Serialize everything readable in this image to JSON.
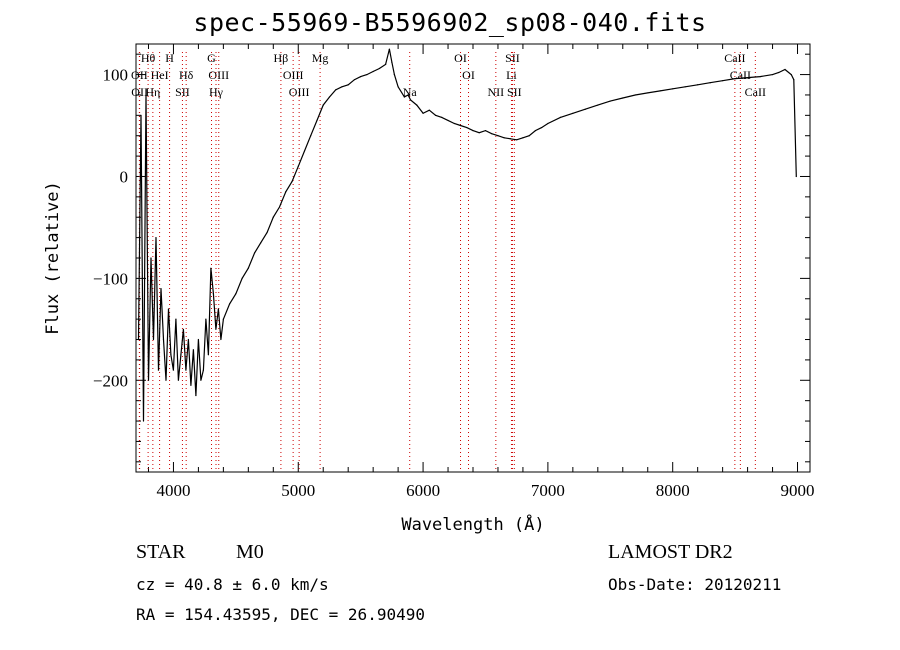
{
  "page": {
    "title": "spec-55969-B5596902_sp08-040.fits",
    "classification": "STAR",
    "subclass": "M0",
    "survey": "LAMOST DR2",
    "cz": "cz = 40.8 ± 6.0 km/s",
    "obs_date": "Obs-Date: 20120211",
    "coords": "RA = 154.43595, DEC =  26.90490"
  },
  "colors": {
    "spectrum": "#000000",
    "line_markers": "#cc0000",
    "axes": "#000000"
  },
  "chart_data": {
    "type": "line",
    "title": "spec-55969-B5596902_sp08-040.fits",
    "xlabel": "Wavelength (Å)",
    "ylabel": "Flux (relative)",
    "xlim": [
      3700,
      9100
    ],
    "ylim": [
      -290,
      130
    ],
    "xticks": [
      4000,
      5000,
      6000,
      7000,
      8000,
      9000
    ],
    "yticks": [
      -200,
      -100,
      0,
      100
    ],
    "grid": false,
    "series": [
      {
        "x": [
          3720,
          3740,
          3760,
          3780,
          3800,
          3820,
          3840,
          3860,
          3880,
          3900,
          3920,
          3940,
          3960,
          3980,
          4000,
          4020,
          4040,
          4060,
          4080,
          4100,
          4120,
          4140,
          4160,
          4180,
          4200,
          4220,
          4240,
          4260,
          4280,
          4300,
          4320,
          4340,
          4360,
          4380,
          4400,
          4450,
          4500,
          4550,
          4600,
          4650,
          4700,
          4750,
          4800,
          4850,
          4900,
          4950,
          5000,
          5050,
          5100,
          5150,
          5200,
          5250,
          5300,
          5350,
          5400,
          5450,
          5500,
          5550,
          5600,
          5650,
          5700,
          5730,
          5750,
          5770,
          5800,
          5850,
          5880,
          5900,
          5950,
          6000,
          6050,
          6100,
          6150,
          6200,
          6250,
          6300,
          6350,
          6400,
          6450,
          6500,
          6550,
          6600,
          6650,
          6700,
          6750,
          6800,
          6850,
          6900,
          6950,
          7000,
          7100,
          7200,
          7300,
          7400,
          7500,
          7600,
          7700,
          7800,
          7900,
          8000,
          8100,
          8200,
          8300,
          8400,
          8500,
          8600,
          8700,
          8800,
          8850,
          8900,
          8950,
          8970,
          8990
        ],
        "y": [
          -160,
          60,
          -240,
          80,
          -200,
          -80,
          -160,
          -60,
          -190,
          -110,
          -160,
          -200,
          -130,
          -175,
          -190,
          -140,
          -200,
          -175,
          -150,
          -190,
          -160,
          -205,
          -170,
          -215,
          -160,
          -200,
          -190,
          -140,
          -175,
          -90,
          -115,
          -150,
          -130,
          -160,
          -140,
          -125,
          -115,
          -100,
          -90,
          -75,
          -65,
          -55,
          -40,
          -30,
          -15,
          -5,
          10,
          25,
          40,
          55,
          70,
          78,
          85,
          88,
          90,
          95,
          98,
          100,
          103,
          106,
          110,
          125,
          112,
          100,
          88,
          78,
          80,
          75,
          70,
          62,
          65,
          60,
          58,
          55,
          52,
          50,
          48,
          45,
          43,
          45,
          42,
          40,
          38,
          37,
          36,
          38,
          40,
          45,
          48,
          52,
          58,
          62,
          66,
          70,
          74,
          77,
          80,
          82,
          84,
          86,
          88,
          90,
          92,
          94,
          96,
          97,
          98,
          100,
          102,
          105,
          100,
          95,
          0
        ]
      }
    ],
    "line_markers": [
      {
        "label": "Hθ",
        "x": 3797,
        "row": 0
      },
      {
        "label": "OII",
        "x": 3727,
        "row": 1
      },
      {
        "label": "OII",
        "x": 3729,
        "row": 2
      },
      {
        "label": "HeI",
        "x": 3889,
        "row": 1
      },
      {
        "label": "Hη",
        "x": 3835,
        "row": 2
      },
      {
        "label": "H",
        "x": 3969,
        "row": 0
      },
      {
        "label": "Hδ",
        "x": 4102,
        "row": 1
      },
      {
        "label": "SII",
        "x": 4072,
        "row": 2
      },
      {
        "label": "G",
        "x": 4305,
        "row": 0
      },
      {
        "label": "OIII",
        "x": 4363,
        "row": 1
      },
      {
        "label": "Hγ",
        "x": 4341,
        "row": 2
      },
      {
        "label": "Hβ",
        "x": 4861,
        "row": 0
      },
      {
        "label": "OIII",
        "x": 4959,
        "row": 1
      },
      {
        "label": "OIII",
        "x": 5007,
        "row": 2
      },
      {
        "label": "Mg",
        "x": 5175,
        "row": 0
      },
      {
        "label": "Na",
        "x": 5893,
        "row": 2
      },
      {
        "label": "OI",
        "x": 6300,
        "row": 0
      },
      {
        "label": "OI",
        "x": 6364,
        "row": 1
      },
      {
        "label": "NII",
        "x": 6583,
        "row": 2
      },
      {
        "label": "SII",
        "x": 6716,
        "row": 0
      },
      {
        "label": "Li",
        "x": 6708,
        "row": 1
      },
      {
        "label": "SII",
        "x": 6731,
        "row": 2
      },
      {
        "label": "CaII",
        "x": 8498,
        "row": 0
      },
      {
        "label": "CaII",
        "x": 8542,
        "row": 1
      },
      {
        "label": "CaII",
        "x": 8662,
        "row": 2
      }
    ]
  }
}
